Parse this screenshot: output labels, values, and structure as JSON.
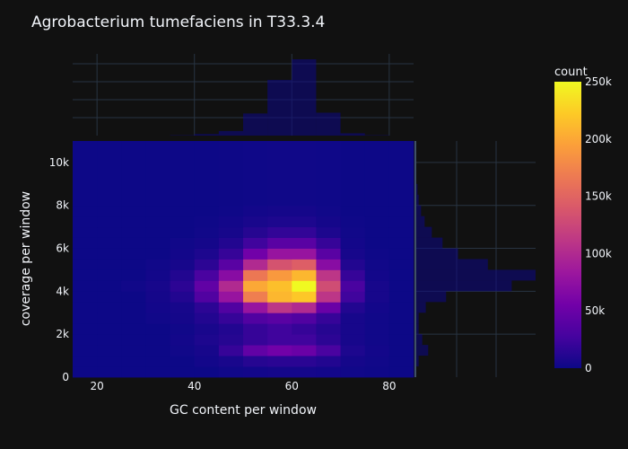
{
  "chart_data": {
    "type": "heatmap",
    "title": "Agrobacterium tumefaciens in T33.3.4",
    "xlabel": "GC content per window",
    "ylabel": "coverage per window",
    "x_ticks": [
      20,
      40,
      60,
      80
    ],
    "x_tick_labels": [
      "20",
      "40",
      "60",
      "80"
    ],
    "y_ticks": [
      0,
      2000,
      4000,
      6000,
      8000,
      10000
    ],
    "y_tick_labels": [
      "0",
      "2k",
      "4k",
      "6k",
      "8k",
      "10k"
    ],
    "xlim": [
      15,
      85
    ],
    "ylim": [
      0,
      11000
    ],
    "colorbar": {
      "title": "count",
      "range": [
        0,
        250000
      ],
      "ticks": [
        0,
        50000,
        100000,
        150000,
        200000,
        250000
      ],
      "tick_labels": [
        "0",
        "50k",
        "100k",
        "150k",
        "200k",
        "250k"
      ],
      "colorscale": [
        "#0d0887",
        "#46039f",
        "#7201a8",
        "#9c179e",
        "#bd3786",
        "#d8576b",
        "#ed7953",
        "#fb9f3a",
        "#fdca26",
        "#f0f921"
      ]
    },
    "x_bin_edges": [
      15,
      20,
      25,
      30,
      35,
      40,
      45,
      50,
      55,
      60,
      65,
      70,
      75,
      80,
      85
    ],
    "y_bin_edges": [
      0,
      500,
      1000,
      1500,
      2000,
      2500,
      3000,
      3500,
      4000,
      4500,
      5000,
      5500,
      6000,
      6500,
      7000,
      7500,
      8000,
      11000
    ],
    "z": [
      [
        0,
        0,
        0,
        0,
        0,
        0,
        2000,
        3000,
        4000,
        4000,
        3000,
        2000,
        1000,
        0
      ],
      [
        0,
        0,
        0,
        0,
        0,
        3000,
        6000,
        12000,
        14000,
        14000,
        10000,
        4000,
        2000,
        0
      ],
      [
        0,
        0,
        0,
        0,
        2000,
        5000,
        20000,
        45000,
        55000,
        50000,
        30000,
        8000,
        3000,
        0
      ],
      [
        0,
        0,
        0,
        0,
        3000,
        8000,
        12000,
        20000,
        25000,
        25000,
        15000,
        5000,
        2000,
        0
      ],
      [
        0,
        0,
        0,
        0,
        2000,
        6000,
        10000,
        20000,
        25000,
        20000,
        12000,
        5000,
        2000,
        0
      ],
      [
        0,
        0,
        0,
        2000,
        4000,
        10000,
        20000,
        35000,
        40000,
        35000,
        20000,
        5000,
        2000,
        0
      ],
      [
        0,
        0,
        0,
        3000,
        5000,
        15000,
        35000,
        80000,
        110000,
        100000,
        50000,
        10000,
        3000,
        0
      ],
      [
        0,
        0,
        0,
        4000,
        10000,
        35000,
        80000,
        170000,
        210000,
        220000,
        110000,
        25000,
        5000,
        0
      ],
      [
        0,
        0,
        2000,
        5000,
        15000,
        45000,
        100000,
        200000,
        215000,
        250000,
        130000,
        30000,
        5000,
        0
      ],
      [
        0,
        0,
        0,
        3000,
        10000,
        30000,
        70000,
        165000,
        190000,
        210000,
        110000,
        20000,
        3000,
        0
      ],
      [
        0,
        0,
        0,
        2000,
        5000,
        15000,
        40000,
        100000,
        135000,
        145000,
        70000,
        10000,
        2000,
        0
      ],
      [
        0,
        0,
        0,
        0,
        3000,
        8000,
        20000,
        55000,
        80000,
        80000,
        40000,
        5000,
        1000,
        0
      ],
      [
        0,
        0,
        0,
        0,
        2000,
        4000,
        10000,
        25000,
        40000,
        40000,
        20000,
        3000,
        0,
        0
      ],
      [
        0,
        0,
        0,
        0,
        0,
        2000,
        5000,
        12000,
        18000,
        18000,
        8000,
        2000,
        0,
        0
      ],
      [
        0,
        0,
        0,
        0,
        0,
        1000,
        3000,
        6000,
        8000,
        8000,
        4000,
        1000,
        0,
        0
      ],
      [
        0,
        0,
        0,
        0,
        0,
        0,
        1000,
        3000,
        4000,
        4000,
        2000,
        0,
        0,
        0
      ],
      [
        0,
        0,
        0,
        0,
        0,
        0,
        500,
        1000,
        1500,
        1500,
        1000,
        0,
        0,
        0
      ]
    ],
    "x_marginal": {
      "type": "histogram",
      "bin_edges": [
        15,
        20,
        25,
        30,
        35,
        40,
        45,
        50,
        55,
        60,
        65,
        70,
        75,
        80,
        85
      ],
      "relative_counts": [
        0,
        0,
        0,
        0,
        0.005,
        0.02,
        0.06,
        0.29,
        0.73,
        1.0,
        0.3,
        0.03,
        0.005,
        0
      ]
    },
    "y_marginal": {
      "type": "histogram",
      "bin_edges": [
        0,
        500,
        1000,
        1500,
        2000,
        2500,
        3000,
        3500,
        4000,
        4500,
        5000,
        5500,
        6000,
        6500,
        7000,
        7500,
        8000,
        8500,
        9000,
        9500,
        10000,
        10500,
        11000
      ],
      "relative_counts": [
        0,
        0.02,
        0.1,
        0.05,
        0.02,
        0.02,
        0.08,
        0.25,
        0.8,
        1.0,
        0.6,
        0.35,
        0.22,
        0.13,
        0.07,
        0.04,
        0.02,
        0.01,
        0,
        0,
        0,
        0
      ]
    }
  }
}
